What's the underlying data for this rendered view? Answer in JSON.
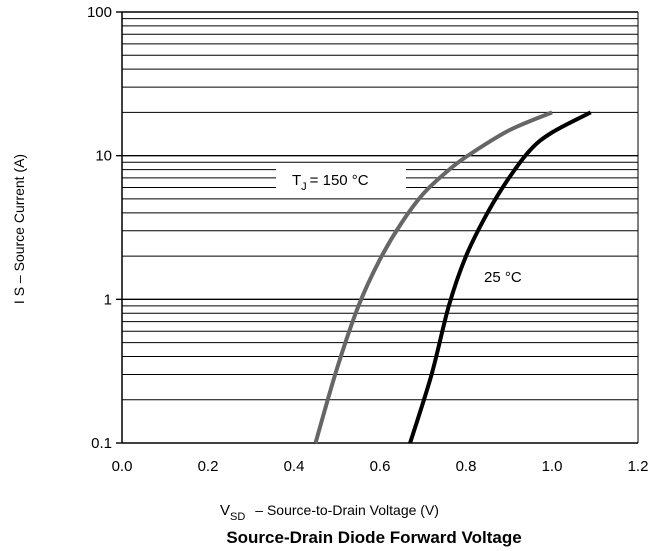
{
  "chart_data": {
    "type": "line",
    "title": "Source-Drain Diode Forward Voltage",
    "xlabel": {
      "prefix": "V",
      "subscript": "SD",
      "text": "– Source-to-Drain Voltage (V)"
    },
    "ylabel": "I S – Source Current (A)",
    "xlim": [
      0.0,
      1.2
    ],
    "ylim": [
      0.1,
      100
    ],
    "yscale": "log",
    "grid": "horizontal minor log lines",
    "xticks": [
      "0.0",
      "0.2",
      "0.4",
      "0.6",
      "0.8",
      "1.0",
      "1.2"
    ],
    "yticks": [
      "0.1",
      "1",
      "10",
      "100"
    ],
    "series": [
      {
        "label": {
          "prefix": "T",
          "subscript": "J",
          "text": "= 150 °C"
        },
        "color": "#666666",
        "points": [
          [
            0.45,
            0.1
          ],
          [
            0.5,
            0.33
          ],
          [
            0.55,
            0.9
          ],
          [
            0.6,
            1.9
          ],
          [
            0.65,
            3.4
          ],
          [
            0.7,
            5.4
          ],
          [
            0.75,
            7.5
          ],
          [
            0.8,
            9.8
          ],
          [
            0.9,
            15.0
          ],
          [
            1.0,
            20.0
          ]
        ]
      },
      {
        "label": {
          "prefix": "",
          "subscript": "",
          "text": "25 °C"
        },
        "color": "#000000",
        "points": [
          [
            0.67,
            0.1
          ],
          [
            0.72,
            0.3
          ],
          [
            0.76,
            0.9
          ],
          [
            0.8,
            2.0
          ],
          [
            0.85,
            4.0
          ],
          [
            0.9,
            7.0
          ],
          [
            0.95,
            11.0
          ],
          [
            1.0,
            14.5
          ],
          [
            1.09,
            20.0
          ]
        ]
      }
    ]
  }
}
